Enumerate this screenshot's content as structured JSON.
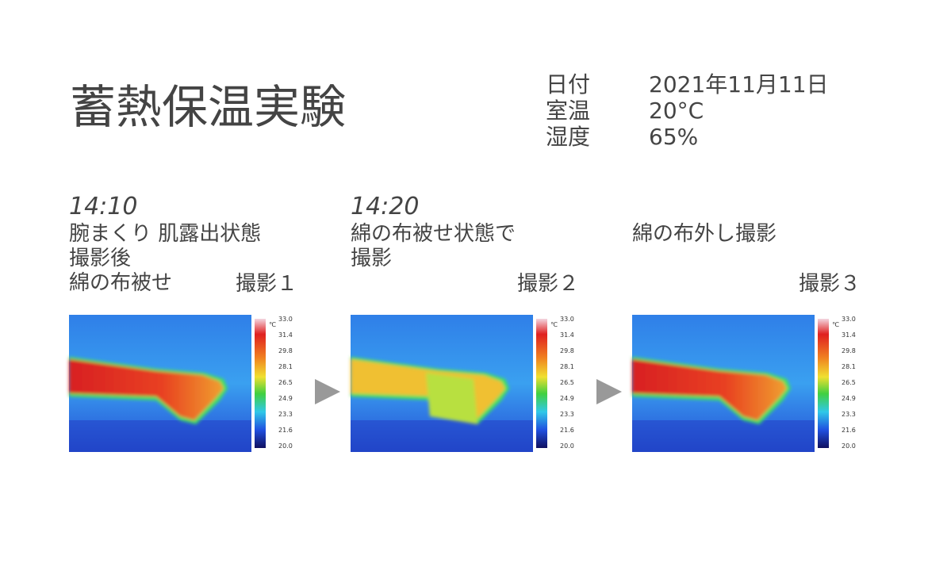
{
  "header": {
    "title": "蓄熱保温実験"
  },
  "conditions": [
    {
      "label": "日付",
      "value": "2021年11月11日"
    },
    {
      "label": "室温",
      "value": "20°C"
    },
    {
      "label": "湿度",
      "value": "65%"
    }
  ],
  "panels": [
    {
      "time": "14:10",
      "caption": [
        "腕まくり 肌露出状態",
        "撮影後",
        "綿の布被せ"
      ],
      "shot": "撮影１"
    },
    {
      "time": "14:20",
      "caption": [
        "綿の布被せ状態で",
        "撮影"
      ],
      "shot": "撮影２"
    },
    {
      "caption": [
        "綿の布外し撮影"
      ],
      "shot": "撮影３"
    }
  ],
  "color_scale": {
    "unit": "℃",
    "ticks": [
      "33.0",
      "31.4",
      "29.8",
      "28.1",
      "26.5",
      "24.9",
      "23.3",
      "21.6",
      "20.0"
    ]
  }
}
